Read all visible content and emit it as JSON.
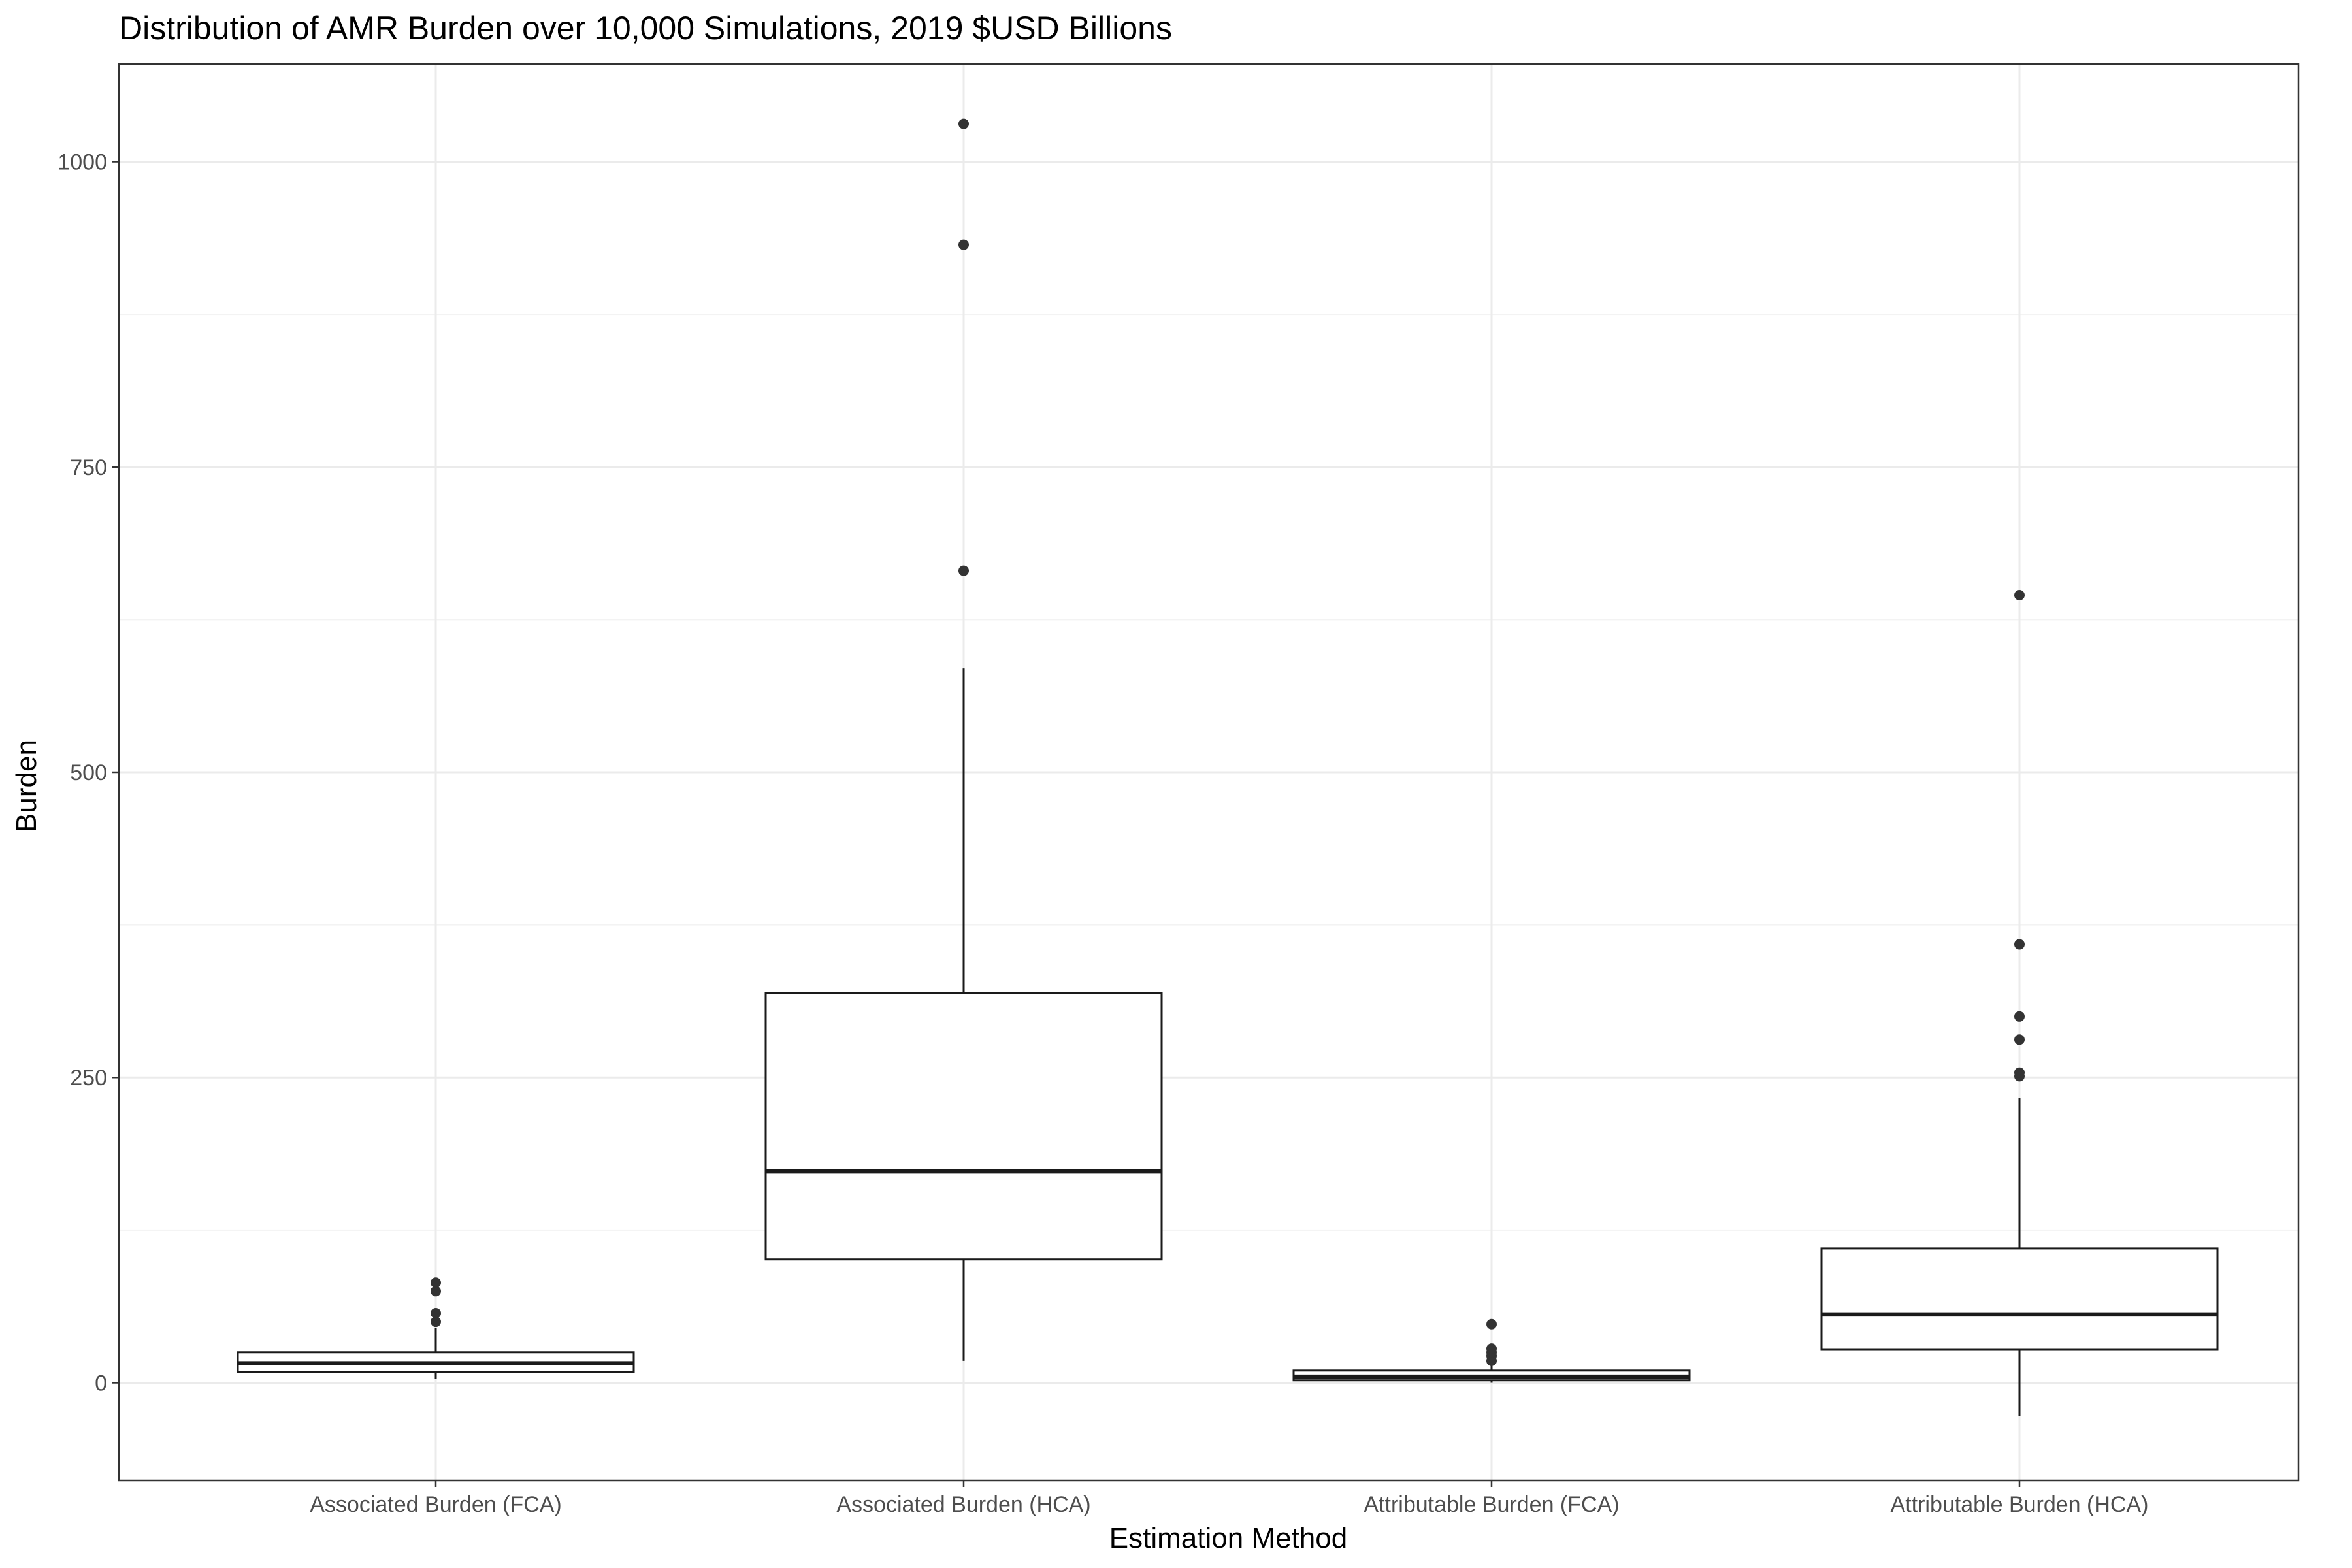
{
  "chart_data": {
    "type": "boxplot",
    "title": "Distribution of AMR Burden over 10,000 Simulations, 2019 $USD Billions",
    "xlabel": "Estimation Method",
    "ylabel": "Burden",
    "ylim": [
      -80,
      1080
    ],
    "yticks": [
      "0",
      "250",
      "500",
      "750",
      "1000"
    ],
    "grid": true,
    "colors": {
      "box_line": "#1a1a1a",
      "outlier": "#333333",
      "grid_major": "#ebebeb",
      "grid_minor": "#f3f3f3",
      "panel_border": "#333333"
    },
    "categories": [
      "Associated Burden (FCA)",
      "Associated Burden (HCA)",
      "Attributable Burden (FCA)",
      "Attributable Burden (HCA)"
    ],
    "boxes": [
      {
        "lower_whisker": 3,
        "q1": 9,
        "median": 16,
        "q3": 25,
        "upper_whisker": 45,
        "outliers": [
          50,
          57,
          75,
          82
        ]
      },
      {
        "lower_whisker": 18,
        "q1": 101,
        "median": 173,
        "q3": 319,
        "upper_whisker": 585,
        "outliers": [
          665,
          932,
          1031
        ]
      },
      {
        "lower_whisker": 0,
        "q1": 2,
        "median": 5,
        "q3": 10,
        "upper_whisker": 16,
        "outliers": [
          18,
          22,
          25,
          28,
          48
        ]
      },
      {
        "lower_whisker": -27,
        "q1": 27,
        "median": 56,
        "q3": 110,
        "upper_whisker": 233,
        "outliers": [
          251,
          254,
          281,
          300,
          359,
          645
        ]
      }
    ]
  }
}
